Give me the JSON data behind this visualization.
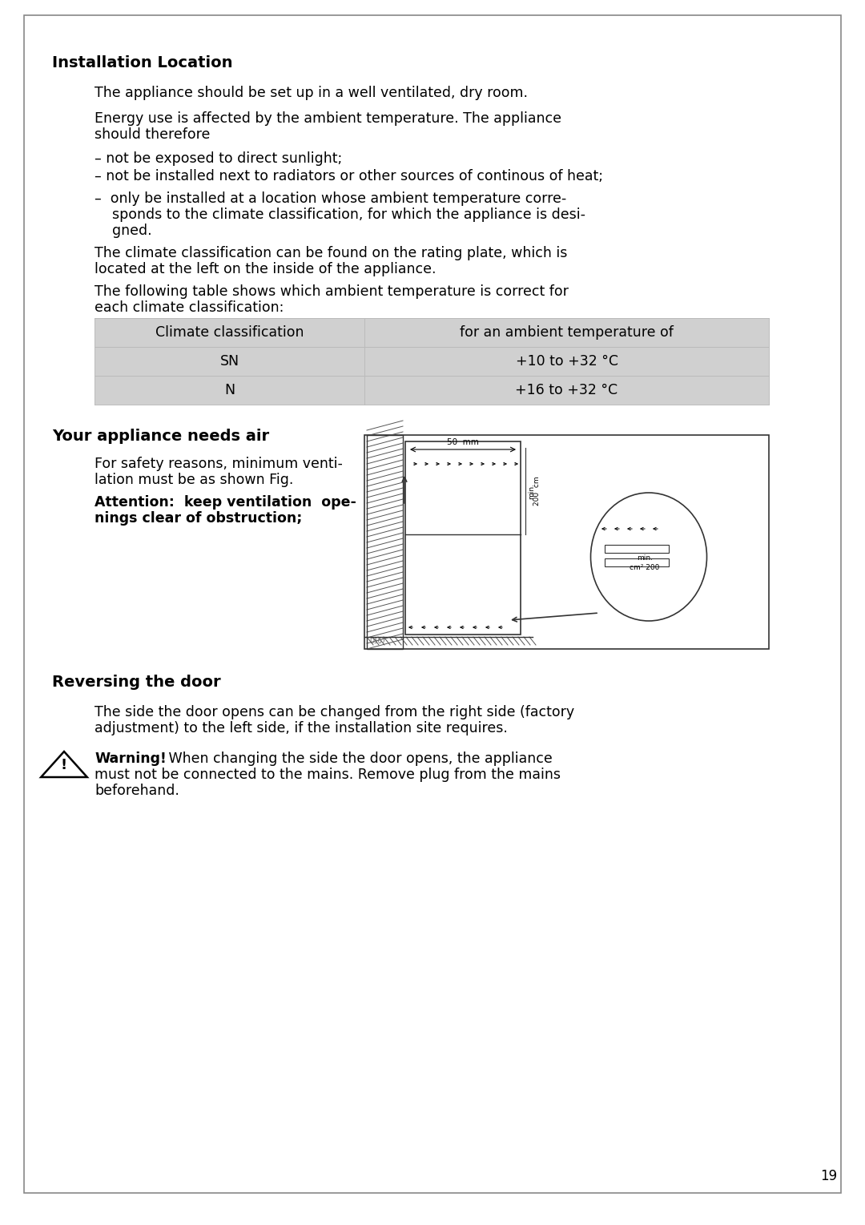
{
  "page_bg": "#ffffff",
  "title1": "Installation Location",
  "title2": "Your appliance needs air",
  "title3": "Reversing the door",
  "para1": "The appliance should be set up in a well ventilated, dry room.",
  "para2_line1": "Energy use is affected by the ambient temperature. The appliance",
  "para2_line2": "should therefore",
  "bullet1": "– not be exposed to direct sunlight;",
  "bullet2": "– not be installed next to radiators or other sources of continous of heat;",
  "bullet3_line1": "–  only be installed at a location whose ambient temperature corre-",
  "bullet3_line2": "    sponds to the climate classification, for which the appliance is desi-",
  "bullet3_line3": "    gned.",
  "para3_line1": "The climate classification can be found on the rating plate, which is",
  "para3_line2": "located at the left on the inside of the appliance.",
  "para4_line1": "The following table shows which ambient temperature is correct for",
  "para4_line2": "each climate classification:",
  "table_header1": "Climate classification",
  "table_header2": "for an ambient temperature of",
  "table_row1_col1": "SN",
  "table_row1_col2": "+10 to +32 °C",
  "table_row2_col1": "N",
  "table_row2_col2": "+16 to +32 °C",
  "table_bg": "#d0d0d0",
  "sec2_text1_line1": "For safety reasons, minimum venti-",
  "sec2_text1_line2": "lation must be as shown Fig.",
  "sec2_text2_line1": "Attention:  keep ventilation  ope-",
  "sec2_text2_line2": "nings clear of obstruction;",
  "sec3_para1_line1": "The side the door opens can be changed from the right side (factory",
  "sec3_para1_line2": "adjustment) to the left side, if the installation site requires.",
  "sec3_warn_line2": "must not be connected to the mains. Remove plug from the mains",
  "sec3_warn_line3": "beforehand.",
  "page_num": "19",
  "text_color": "#000000"
}
